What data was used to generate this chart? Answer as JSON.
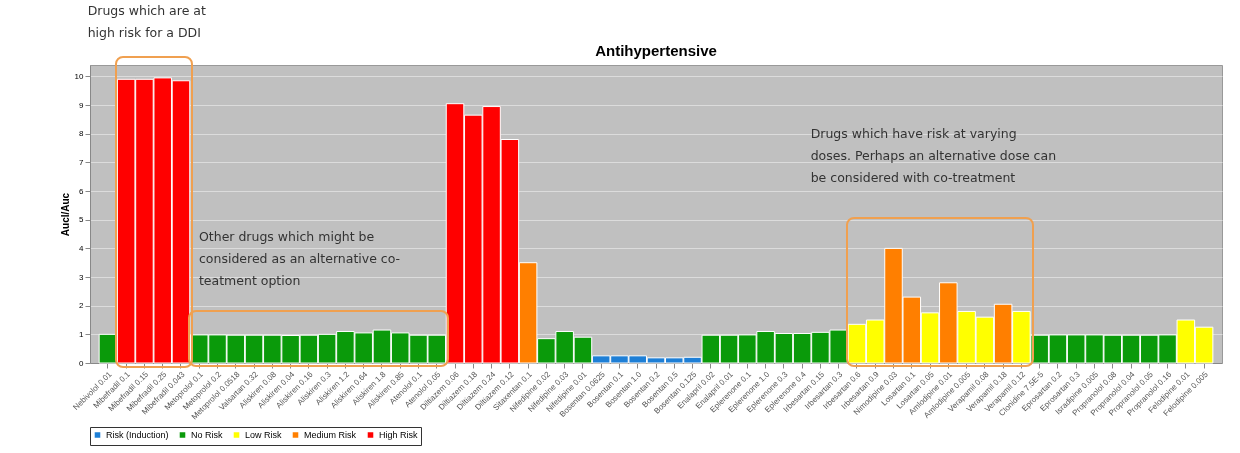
{
  "chart_data": {
    "type": "bar",
    "title": "Antihypertensive",
    "ylabel": "AucI/Auc",
    "stacked": true,
    "legend": "bottom",
    "grid": "y",
    "categories": [
      "Nebivolol 0.01",
      "Mibefradil 0.1",
      "Mibefradil 0.15",
      "Mibefradil 0.25",
      "Mibefradil 0.043",
      "Metoprolol 0.1",
      "Metoprolol 0.2",
      "Metoprolol 0.0518",
      "Valsartan 0.32",
      "Aliskiren 0.08",
      "Aliskiren 0.04",
      "Aliskiren 0.16",
      "Aliskiren 0.3",
      "Aliskiren 1.2",
      "Aliskiren 0.64",
      "Aliskiren 1.8",
      "Aliskiren 0.85",
      "Atenolol 0.1",
      "Atenolol 0.05",
      "Diltiazem 0.06",
      "Diltiazem 0.18",
      "Diltiazem 0.24",
      "Diltiazem 0.12",
      "Sitaxentan 0.1",
      "Nifedipine 0.02",
      "Nifedipine 0.03",
      "Nifedipine 0.01",
      "Bosentan 0.0625",
      "Bosentan 0.1",
      "Bosentan 1.0",
      "Bosentan 0.2",
      "Bosentan 0.5",
      "Bosentan 0.125",
      "Enalapril 0.02",
      "Enalapril 0.01",
      "Eplerenone 0.1",
      "Eplerenone 1.0",
      "Eplerenone 0.3",
      "Eplerenone 0.4",
      "Irbesartan 0.15",
      "Irbesartan 0.3",
      "Irbesartan 0.6",
      "Irbesartan 0.9",
      "Nimodipine 0.03",
      "Losartan 0.1",
      "Losartan 0.05",
      "Amlodipine 0.01",
      "Amlodipine 0.005",
      "Verapamil 0.08",
      "Verapamil 0.18",
      "Verapamil 0.12",
      "Clonidine 7.5E-5",
      "Eprosartan 0.2",
      "Eprosartan 0.3",
      "Isradipine 0.005",
      "Propranolol 0.08",
      "Propranolol 0.04",
      "Propranolol 0.05",
      "Propranolol 0.16",
      "Felodipine 0.01",
      "Felodipine 0.005"
    ],
    "series": [
      {
        "name": "Risk (Induction)",
        "color": "#1e7fd6",
        "values": [
          null,
          null,
          null,
          null,
          null,
          null,
          null,
          null,
          null,
          null,
          null,
          null,
          null,
          null,
          null,
          null,
          null,
          null,
          null,
          null,
          null,
          null,
          null,
          null,
          null,
          null,
          null,
          0.25,
          0.25,
          0.25,
          0.18,
          0.18,
          0.2,
          null,
          null,
          null,
          null,
          null,
          null,
          null,
          null,
          null,
          null,
          null,
          null,
          null,
          null,
          null,
          null,
          null,
          null,
          null,
          null,
          null,
          null,
          null,
          null,
          null,
          null,
          null,
          null
        ]
      },
      {
        "name": "No Risk",
        "color": "#0a9a0a",
        "values": [
          1.0,
          null,
          null,
          null,
          null,
          0.98,
          0.98,
          0.97,
          0.97,
          0.97,
          0.96,
          0.97,
          1.0,
          1.1,
          1.05,
          1.15,
          1.05,
          0.97,
          0.97,
          null,
          null,
          null,
          null,
          null,
          0.85,
          1.1,
          0.9,
          null,
          null,
          null,
          null,
          null,
          null,
          0.97,
          0.97,
          0.98,
          1.1,
          1.03,
          1.03,
          1.07,
          1.15,
          null,
          null,
          null,
          null,
          null,
          null,
          null,
          null,
          null,
          null,
          0.97,
          0.98,
          0.98,
          0.98,
          0.97,
          0.97,
          0.97,
          0.98,
          null,
          null
        ]
      },
      {
        "name": "Low Risk",
        "color": "#ffff00",
        "values": [
          null,
          null,
          null,
          null,
          null,
          null,
          null,
          null,
          null,
          null,
          null,
          null,
          null,
          null,
          null,
          null,
          null,
          null,
          null,
          null,
          null,
          null,
          null,
          null,
          null,
          null,
          null,
          null,
          null,
          null,
          null,
          null,
          null,
          null,
          null,
          null,
          null,
          null,
          null,
          null,
          null,
          1.35,
          1.5,
          null,
          null,
          1.75,
          null,
          1.8,
          1.6,
          null,
          1.8,
          null,
          null,
          null,
          null,
          null,
          null,
          null,
          null,
          1.5,
          1.25
        ]
      },
      {
        "name": "Medium Risk",
        "color": "#ff7f00",
        "values": [
          null,
          null,
          null,
          null,
          null,
          null,
          null,
          null,
          null,
          null,
          null,
          null,
          null,
          null,
          null,
          null,
          null,
          null,
          null,
          null,
          null,
          null,
          null,
          3.5,
          null,
          null,
          null,
          null,
          null,
          null,
          null,
          null,
          null,
          null,
          null,
          null,
          null,
          null,
          null,
          null,
          null,
          null,
          null,
          4.0,
          2.3,
          null,
          2.8,
          null,
          null,
          2.05,
          null,
          null,
          null,
          null,
          null,
          null,
          null,
          null,
          null,
          null,
          null
        ]
      },
      {
        "name": "High Risk",
        "color": "#ff0000",
        "values": [
          null,
          9.9,
          9.9,
          9.95,
          9.85,
          null,
          null,
          null,
          null,
          null,
          null,
          null,
          null,
          null,
          null,
          null,
          null,
          null,
          null,
          9.05,
          8.65,
          8.95,
          7.8,
          null,
          null,
          null,
          null,
          null,
          null,
          null,
          null,
          null,
          null,
          null,
          null,
          null,
          null,
          null,
          null,
          null,
          null,
          null,
          null,
          null,
          null,
          null,
          null,
          null,
          null,
          null,
          null,
          null,
          null,
          null,
          null,
          null,
          null,
          null,
          null,
          null,
          null
        ]
      }
    ],
    "ylim": [
      0,
      10.4
    ],
    "yticks": [
      0,
      1,
      2,
      3,
      4,
      5,
      6,
      7,
      8,
      9,
      10
    ],
    "annotations": [
      "Drugs which are at high risk for a DDI",
      "Other drugs which might be considered as an alternative co-teatment option",
      "Drugs which have risk at varying doses. Perhaps an alternative dose can be considered with co-treatment"
    ]
  }
}
